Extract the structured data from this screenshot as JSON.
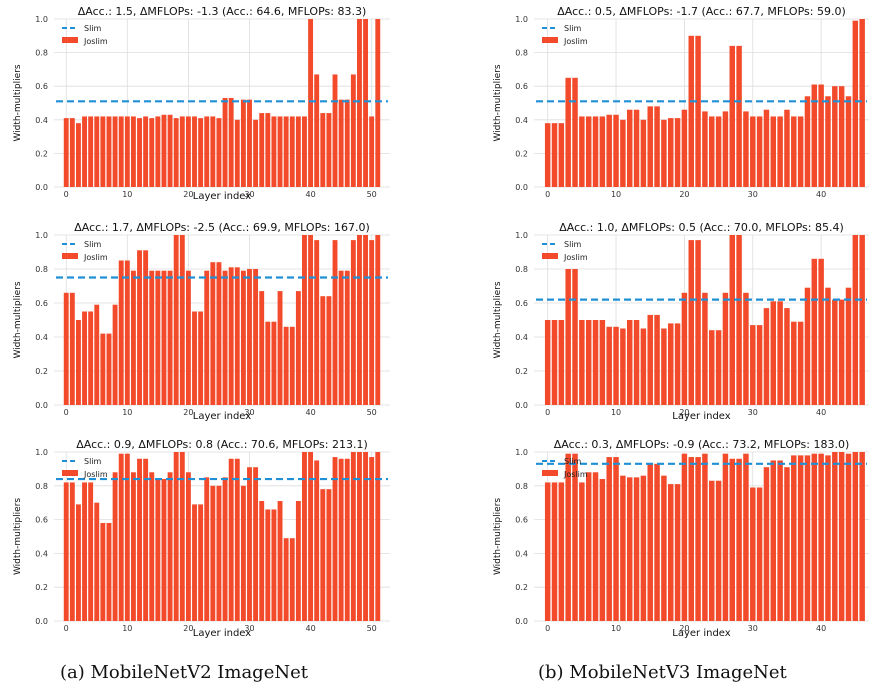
{
  "figure": {
    "captions": [
      "(a) MobileNetV2 ImageNet",
      "(b) MobileNetV3 ImageNet"
    ]
  },
  "chart_data": [
    {
      "type": "bar",
      "title": "ΔAcc.: 1.5, ΔMFLOPs: -1.3 (Acc.: 64.6, MFLOPs: 83.3)",
      "xlabel": "Layer index",
      "ylabel": "Width-multipliers",
      "ylim": [
        0,
        1.0
      ],
      "xlim": [
        -2,
        53
      ],
      "xticks": [
        0,
        10,
        20,
        30,
        40,
        50
      ],
      "yticks": [
        0.0,
        0.2,
        0.4,
        0.6,
        0.8,
        1.0
      ],
      "grid": true,
      "legend": "top-left",
      "slim_value": 0.51,
      "series": [
        {
          "name": "Joslim",
          "color": "#f24a2a",
          "values": [
            0.41,
            0.41,
            0.38,
            0.42,
            0.42,
            0.42,
            0.42,
            0.42,
            0.42,
            0.42,
            0.42,
            0.42,
            0.41,
            0.42,
            0.41,
            0.42,
            0.43,
            0.43,
            0.41,
            0.42,
            0.42,
            0.42,
            0.41,
            0.42,
            0.42,
            0.41,
            0.53,
            0.53,
            0.4,
            0.52,
            0.52,
            0.4,
            0.44,
            0.44,
            0.42,
            0.42,
            0.42,
            0.42,
            0.42,
            0.42,
            1.0,
            0.67,
            0.44,
            0.44,
            0.67,
            0.52,
            0.52,
            0.67,
            1.0,
            1.0,
            0.42,
            1.0
          ]
        }
      ]
    },
    {
      "type": "bar",
      "title": "ΔAcc.: 0.5, ΔMFLOPs: -1.7 (Acc.: 67.7, MFLOPs: 59.0)",
      "xlabel": "",
      "ylabel": "Width-multipliers",
      "ylim": [
        0,
        1.0
      ],
      "xlim": [
        -2,
        47
      ],
      "xticks": [
        0,
        10,
        20,
        30,
        40
      ],
      "yticks": [
        0.0,
        0.2,
        0.4,
        0.6,
        0.8,
        1.0
      ],
      "grid": true,
      "legend": "top-left",
      "slim_value": 0.51,
      "series": [
        {
          "name": "Joslim",
          "color": "#f24a2a",
          "values": [
            0.38,
            0.38,
            0.38,
            0.65,
            0.65,
            0.42,
            0.42,
            0.42,
            0.42,
            0.43,
            0.43,
            0.4,
            0.46,
            0.46,
            0.4,
            0.48,
            0.48,
            0.4,
            0.41,
            0.41,
            0.46,
            0.9,
            0.9,
            0.45,
            0.42,
            0.42,
            0.45,
            0.84,
            0.84,
            0.45,
            0.42,
            0.42,
            0.46,
            0.42,
            0.42,
            0.46,
            0.42,
            0.42,
            0.54,
            0.61,
            0.61,
            0.54,
            0.6,
            0.6,
            0.54,
            0.99,
            1.0
          ]
        }
      ]
    },
    {
      "type": "bar",
      "title": "ΔAcc.: 1.7, ΔMFLOPs: -2.5 (Acc.: 69.9, MFLOPs: 167.0)",
      "xlabel": "Layer index",
      "ylabel": "Width-multipliers",
      "ylim": [
        0,
        1.0
      ],
      "xlim": [
        -2,
        53
      ],
      "xticks": [
        0,
        10,
        20,
        30,
        40,
        50
      ],
      "yticks": [
        0.0,
        0.2,
        0.4,
        0.6,
        0.8,
        1.0
      ],
      "grid": true,
      "legend": "top-left",
      "slim_value": 0.75,
      "series": [
        {
          "name": "Joslim",
          "color": "#f24a2a",
          "values": [
            0.66,
            0.66,
            0.5,
            0.55,
            0.55,
            0.59,
            0.42,
            0.42,
            0.59,
            0.85,
            0.85,
            0.79,
            0.91,
            0.91,
            0.79,
            0.79,
            0.79,
            0.79,
            1.0,
            1.0,
            0.79,
            0.55,
            0.55,
            0.79,
            0.84,
            0.84,
            0.79,
            0.81,
            0.81,
            0.79,
            0.8,
            0.8,
            0.67,
            0.49,
            0.49,
            0.67,
            0.46,
            0.46,
            0.67,
            1.0,
            1.0,
            0.97,
            0.64,
            0.64,
            0.97,
            0.79,
            0.79,
            0.97,
            1.0,
            1.0,
            0.97,
            1.0
          ]
        }
      ]
    },
    {
      "type": "bar",
      "title": "ΔAcc.: 1.0, ΔMFLOPs: 0.5 (Acc.: 70.0, MFLOPs: 85.4)",
      "xlabel": "Layer index",
      "ylabel": "Width-multipliers",
      "ylim": [
        0,
        1.0
      ],
      "xlim": [
        -2,
        47
      ],
      "xticks": [
        0,
        10,
        20,
        30,
        40
      ],
      "yticks": [
        0.0,
        0.2,
        0.4,
        0.6,
        0.8,
        1.0
      ],
      "grid": true,
      "legend": "top-left",
      "slim_value": 0.62,
      "series": [
        {
          "name": "Joslim",
          "color": "#f24a2a",
          "values": [
            0.5,
            0.5,
            0.5,
            0.8,
            0.8,
            0.5,
            0.5,
            0.5,
            0.5,
            0.46,
            0.46,
            0.45,
            0.5,
            0.5,
            0.45,
            0.53,
            0.53,
            0.45,
            0.48,
            0.48,
            0.66,
            0.97,
            0.97,
            0.66,
            0.44,
            0.44,
            0.66,
            1.0,
            1.0,
            0.66,
            0.47,
            0.47,
            0.57,
            0.61,
            0.61,
            0.57,
            0.49,
            0.49,
            0.69,
            0.86,
            0.86,
            0.69,
            0.62,
            0.62,
            0.69,
            1.0,
            1.0
          ]
        }
      ]
    },
    {
      "type": "bar",
      "title": "ΔAcc.: 0.9, ΔMFLOPs: 0.8 (Acc.: 70.6, MFLOPs: 213.1)",
      "xlabel": "Layer index",
      "ylabel": "Width-multipliers",
      "ylim": [
        0,
        1.0
      ],
      "xlim": [
        -2,
        53
      ],
      "xticks": [
        0,
        10,
        20,
        30,
        40,
        50
      ],
      "yticks": [
        0.0,
        0.2,
        0.4,
        0.6,
        0.8,
        1.0
      ],
      "grid": true,
      "legend": "top-left",
      "slim_value": 0.84,
      "series": [
        {
          "name": "Joslim",
          "color": "#f24a2a",
          "values": [
            0.82,
            0.82,
            0.69,
            0.82,
            0.82,
            0.7,
            0.58,
            0.58,
            0.88,
            0.99,
            0.99,
            0.88,
            0.96,
            0.96,
            0.88,
            0.84,
            0.84,
            0.88,
            1.0,
            1.0,
            0.88,
            0.69,
            0.69,
            0.85,
            0.8,
            0.8,
            0.85,
            0.96,
            0.96,
            0.8,
            0.91,
            0.91,
            0.71,
            0.66,
            0.66,
            0.71,
            0.49,
            0.49,
            0.71,
            1.0,
            1.0,
            0.95,
            0.78,
            0.78,
            0.97,
            0.96,
            0.96,
            1.0,
            1.0,
            1.0,
            0.97,
            1.0
          ]
        }
      ]
    },
    {
      "type": "bar",
      "title": "ΔAcc.: 0.3, ΔMFLOPs: -0.9 (Acc.: 73.2, MFLOPs: 183.0)",
      "xlabel": "Layer index",
      "ylabel": "Width-multipliers",
      "ylim": [
        0,
        1.0
      ],
      "xlim": [
        -2,
        47
      ],
      "xticks": [
        0,
        10,
        20,
        30,
        40
      ],
      "yticks": [
        0.0,
        0.2,
        0.4,
        0.6,
        0.8,
        1.0
      ],
      "grid": true,
      "legend": "top-left",
      "slim_value": 0.93,
      "series": [
        {
          "name": "Joslim",
          "color": "#f24a2a",
          "values": [
            0.82,
            0.82,
            0.82,
            0.99,
            0.99,
            0.82,
            0.88,
            0.88,
            0.84,
            0.97,
            0.97,
            0.86,
            0.85,
            0.85,
            0.86,
            0.93,
            0.93,
            0.86,
            0.81,
            0.81,
            0.99,
            0.97,
            0.97,
            0.99,
            0.83,
            0.83,
            0.99,
            0.96,
            0.96,
            0.99,
            0.79,
            0.79,
            0.91,
            0.95,
            0.95,
            0.91,
            0.98,
            0.98,
            0.98,
            0.99,
            0.99,
            0.98,
            1.0,
            1.0,
            0.99,
            1.0,
            1.0
          ]
        }
      ]
    }
  ],
  "legend_labels": {
    "slim": "Slim",
    "joslim": "Joslim"
  },
  "colors": {
    "slim": "#1f8fd6",
    "bar": "#f24a2a",
    "grid": "#dddddd"
  }
}
